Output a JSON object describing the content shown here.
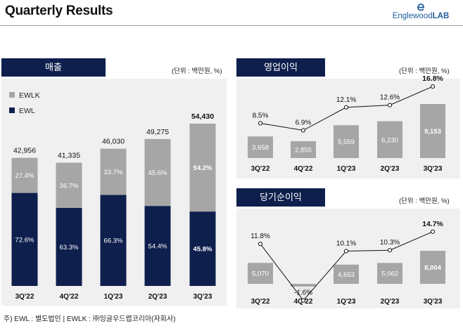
{
  "header": {
    "title": "Quarterly Results",
    "logo_text_regular": "Englewood",
    "logo_text_bold": "LAB"
  },
  "colors": {
    "navy": "#0e1f4d",
    "gray_bar": "#a6a6a6",
    "panel_bg": "#f0f0f0"
  },
  "revenue": {
    "header": "매출",
    "unit": "(단위 : 백만원, %)"
  },
  "op_profit": {
    "header": "영업이익",
    "unit": "(단위 : 백만원, %)"
  },
  "net_profit": {
    "header": "당기순이익",
    "unit": "(단위 : 백만원, %)"
  },
  "footnote": "주) EWL : 별도법인 | EWLK : ㈜잉글우드랩코리아(자회사)",
  "chart_data": [
    {
      "id": "revenue",
      "type": "bar",
      "stacked": true,
      "categories": [
        "3Q'22",
        "4Q'22",
        "1Q'23",
        "2Q'23",
        "3Q'23"
      ],
      "totals": [
        "42,956",
        "41,335",
        "46,030",
        "49,275",
        "54,430"
      ],
      "total_values": [
        42956,
        41335,
        46030,
        49275,
        54430
      ],
      "series": [
        {
          "name": "EWL",
          "color": "#0e1f4d",
          "share_labels": [
            "72.6%",
            "63.3%",
            "66.3%",
            "54.4%",
            "45.8%"
          ],
          "shares": [
            72.6,
            63.3,
            66.3,
            54.4,
            45.8
          ]
        },
        {
          "name": "EWLK",
          "color": "#a6a6a6",
          "share_labels": [
            "27.4%",
            "36.7%",
            "33.7%",
            "45.6%",
            "54.2%"
          ],
          "shares": [
            27.4,
            36.7,
            33.7,
            45.6,
            54.2
          ]
        }
      ],
      "legend": [
        "EWLK",
        "EWL"
      ],
      "legend_position": "top-left",
      "highlight_last": true
    },
    {
      "id": "op_profit",
      "type": "bar+line",
      "categories": [
        "3Q'22",
        "4Q'22",
        "1Q'23",
        "2Q'23",
        "3Q'23"
      ],
      "values": [
        3658,
        2855,
        5559,
        6230,
        9153
      ],
      "value_labels": [
        "3,658",
        "2,855",
        "5,559",
        "6,230",
        "9,153"
      ],
      "margins": [
        8.5,
        6.9,
        12.1,
        12.6,
        16.8
      ],
      "margin_labels": [
        "8.5%",
        "6.9%",
        "12.1%",
        "12.6%",
        "16.8%"
      ],
      "highlight_last": true
    },
    {
      "id": "net_profit",
      "type": "bar+line",
      "categories": [
        "3Q'22",
        "4Q'22",
        "1Q'23",
        "2Q'23",
        "3Q'23"
      ],
      "values": [
        5070,
        -672,
        4653,
        5062,
        8004
      ],
      "value_labels": [
        "5,070",
        "-672",
        "4,653",
        "5,062",
        "8,004"
      ],
      "margins": [
        11.8,
        -1.6,
        10.1,
        10.3,
        14.7
      ],
      "margin_labels": [
        "11.8%",
        "-1.6%",
        "10.1%",
        "10.3%",
        "14.7%"
      ],
      "highlight_last": true
    }
  ]
}
